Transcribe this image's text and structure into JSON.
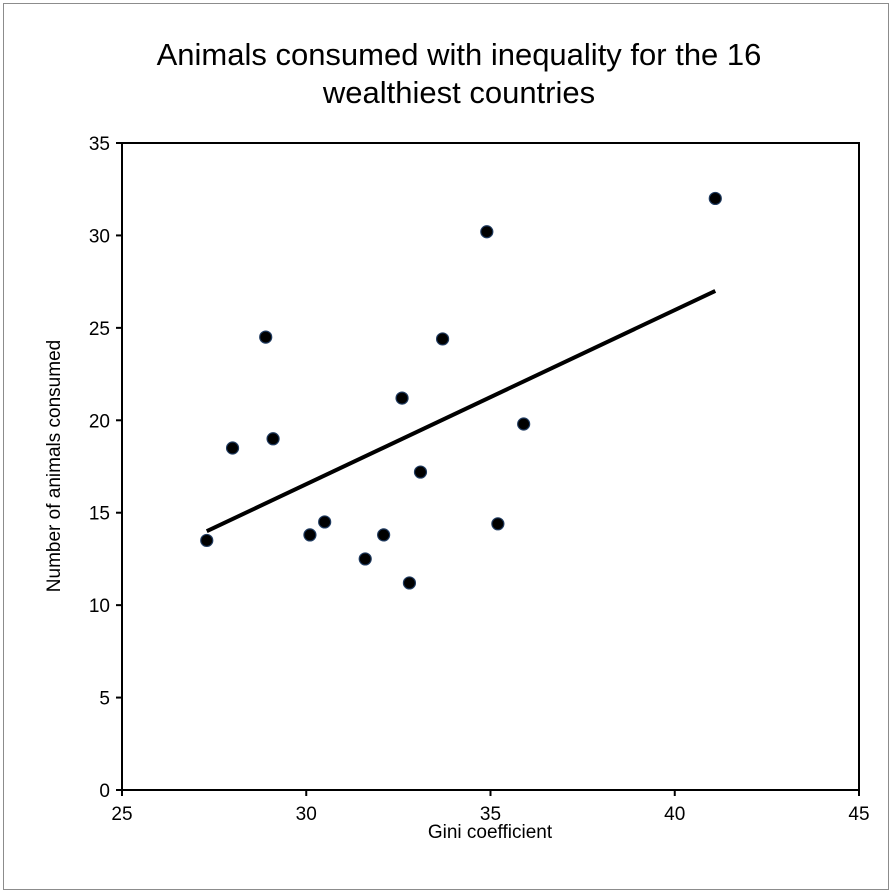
{
  "chart_data": {
    "type": "scatter",
    "title_lines": [
      "Animals consumed with inequality for the 16",
      "wealthiest countries"
    ],
    "xlabel": "Gini coefficient",
    "ylabel": "Number of animals consumed",
    "xlim": [
      25,
      45
    ],
    "ylim": [
      0,
      35
    ],
    "xticks": [
      25,
      30,
      35,
      40,
      45
    ],
    "yticks": [
      0,
      5,
      10,
      15,
      20,
      25,
      30,
      35
    ],
    "grid": false,
    "legend": "none",
    "points": [
      {
        "x": 27.3,
        "y": 13.5
      },
      {
        "x": 28.0,
        "y": 18.5
      },
      {
        "x": 28.9,
        "y": 24.5
      },
      {
        "x": 29.1,
        "y": 19.0
      },
      {
        "x": 30.1,
        "y": 13.8
      },
      {
        "x": 30.5,
        "y": 14.5
      },
      {
        "x": 31.6,
        "y": 12.5
      },
      {
        "x": 32.1,
        "y": 13.8
      },
      {
        "x": 32.6,
        "y": 21.2
      },
      {
        "x": 32.8,
        "y": 11.2
      },
      {
        "x": 33.1,
        "y": 17.2
      },
      {
        "x": 33.7,
        "y": 24.4
      },
      {
        "x": 34.9,
        "y": 30.2
      },
      {
        "x": 35.2,
        "y": 14.4
      },
      {
        "x": 35.9,
        "y": 19.8
      },
      {
        "x": 41.1,
        "y": 32.0
      }
    ],
    "trendline": {
      "x": [
        27.3,
        41.1
      ],
      "y": [
        14.0,
        27.0
      ]
    },
    "colors": {
      "marker": "#000000",
      "marker_edge": "#1f3a5f",
      "trendline": "#000000"
    }
  }
}
